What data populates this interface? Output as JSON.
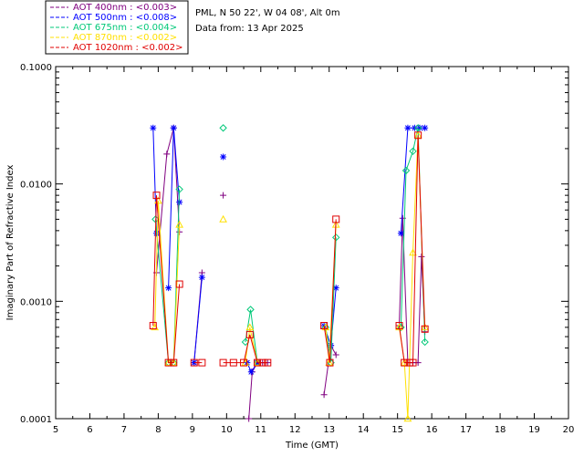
{
  "chart_data": {
    "type": "line",
    "title_lines": [
      "PML, N 50 22', W 04 08', Alt 0m",
      "Data from: 13 Apr 2025"
    ],
    "xlabel": "Time (GMT)",
    "ylabel": "Imaginary Part of Refractive Index",
    "xlim": [
      5,
      20
    ],
    "ylim": [
      0.0001,
      0.1
    ],
    "yscale": "log",
    "x_ticks": [
      "5",
      "6",
      "7",
      "8",
      "9",
      "10",
      "11",
      "12",
      "13",
      "14",
      "15",
      "16",
      "17",
      "18",
      "19",
      "20"
    ],
    "y_ticks": [
      {
        "value": 0.0001,
        "label": "0.0001"
      },
      {
        "value": 0.001,
        "label": "0.0010"
      },
      {
        "value": 0.01,
        "label": "0.0100"
      },
      {
        "value": 0.1,
        "label": "0.1000"
      }
    ],
    "series": [
      {
        "name": "AOT  400nm : <0.003>",
        "color": "#800080",
        "marker": "+",
        "segments": [
          [
            [
              7.95,
              0.00175
            ],
            [
              8.25,
              0.018
            ],
            [
              8.45,
              0.03
            ],
            [
              8.62,
              0.0039
            ]
          ],
          [
            [
              9.05,
              0.0003
            ],
            [
              9.28,
              0.00175
            ]
          ],
          [
            [
              10.65,
              0.0001
            ],
            [
              10.75,
              0.00025
            ],
            [
              10.9,
              0.0003
            ],
            [
              11.05,
              0.0003
            ],
            [
              11.2,
              0.0003
            ]
          ],
          [
            [
              12.85,
              0.00016
            ],
            [
              13.05,
              0.00042
            ],
            [
              13.2,
              0.00035
            ]
          ],
          [
            [
              15.05,
              0.00062
            ],
            [
              15.15,
              0.0051
            ],
            [
              15.3,
              0.0003
            ],
            [
              15.45,
              0.0003
            ],
            [
              15.6,
              0.0003
            ],
            [
              15.7,
              0.0024
            ],
            [
              15.8,
              0.00055
            ]
          ]
        ],
        "isolated": [
          [
            9.9,
            0.008
          ]
        ]
      },
      {
        "name": "AOT  500nm : <0.008>",
        "color": "#0000ff",
        "marker": "*",
        "segments": [
          [
            [
              7.85,
              0.03
            ],
            [
              7.95,
              0.0038
            ]
          ],
          [
            [
              8.3,
              0.0013
            ],
            [
              8.45,
              0.03
            ],
            [
              8.62,
              0.007
            ]
          ],
          [
            [
              9.05,
              0.0003
            ],
            [
              9.28,
              0.0016
            ]
          ],
          [
            [
              10.6,
              0.0003
            ],
            [
              10.72,
              0.00025
            ],
            [
              10.9,
              0.0003
            ]
          ],
          [
            [
              12.85,
              0.00062
            ],
            [
              13.05,
              0.00042
            ],
            [
              13.2,
              0.0013
            ]
          ],
          [
            [
              15.1,
              0.0038
            ],
            [
              15.3,
              0.03
            ],
            [
              15.5,
              0.03
            ],
            [
              15.65,
              0.03
            ],
            [
              15.8,
              0.03
            ]
          ]
        ],
        "isolated": [
          [
            9.9,
            0.017
          ]
        ]
      },
      {
        "name": "AOT  675nm : <0.004>",
        "color": "#00c878",
        "marker": "diamond",
        "segments": [
          [
            [
              7.92,
              0.005
            ],
            [
              8.3,
              0.0003
            ],
            [
              8.45,
              0.0003
            ],
            [
              8.62,
              0.009
            ]
          ],
          [
            [
              10.55,
              0.00045
            ],
            [
              10.7,
              0.00085
            ],
            [
              10.9,
              0.0003
            ]
          ],
          [
            [
              12.9,
              0.0006
            ],
            [
              13.05,
              0.0003
            ],
            [
              13.2,
              0.0035
            ]
          ],
          [
            [
              15.1,
              0.0006
            ],
            [
              15.25,
              0.013
            ],
            [
              15.45,
              0.019
            ],
            [
              15.6,
              0.03
            ],
            [
              15.8,
              0.00045
            ]
          ]
        ],
        "isolated": [
          [
            9.9,
            0.03
          ]
        ]
      },
      {
        "name": "AOT  870nm : <0.002>",
        "color": "#ffe000",
        "marker": "triangle",
        "segments": [
          [
            [
              7.9,
              0.0006
            ],
            [
              8.0,
              0.0072
            ],
            [
              8.3,
              0.0003
            ],
            [
              8.45,
              0.0003
            ],
            [
              8.62,
              0.0045
            ]
          ],
          [
            [
              10.55,
              0.0003
            ],
            [
              10.68,
              0.0006
            ],
            [
              10.9,
              0.0003
            ]
          ],
          [
            [
              12.9,
              0.0006
            ],
            [
              13.0,
              0.0003
            ],
            [
              13.2,
              0.0045
            ]
          ],
          [
            [
              15.05,
              0.0006
            ],
            [
              15.2,
              0.0003
            ],
            [
              15.3,
              0.0001
            ],
            [
              15.45,
              0.0026
            ],
            [
              15.6,
              0.026
            ],
            [
              15.8,
              0.0006
            ]
          ]
        ],
        "isolated": [
          [
            9.9,
            0.005
          ]
        ]
      },
      {
        "name": "AOT 1020nm : <0.002>",
        "color": "#e00000",
        "marker": "square",
        "segments": [
          [
            [
              7.85,
              0.00062
            ],
            [
              7.95,
              0.008
            ],
            [
              8.3,
              0.0003
            ],
            [
              8.45,
              0.0003
            ],
            [
              8.62,
              0.0014
            ]
          ],
          [
            [
              9.05,
              0.0003
            ],
            [
              9.28,
              0.0003
            ]
          ],
          [
            [
              9.9,
              0.0003
            ],
            [
              10.2,
              0.0003
            ],
            [
              10.5,
              0.0003
            ],
            [
              10.68,
              0.00052
            ],
            [
              10.9,
              0.0003
            ],
            [
              11.05,
              0.0003
            ],
            [
              11.2,
              0.0003
            ]
          ],
          [
            [
              12.85,
              0.00062
            ],
            [
              13.02,
              0.0003
            ],
            [
              13.2,
              0.005
            ]
          ],
          [
            [
              15.05,
              0.00062
            ],
            [
              15.2,
              0.0003
            ],
            [
              15.35,
              0.0003
            ],
            [
              15.45,
              0.0003
            ],
            [
              15.6,
              0.026
            ],
            [
              15.8,
              0.00058
            ]
          ]
        ],
        "isolated": []
      }
    ]
  }
}
